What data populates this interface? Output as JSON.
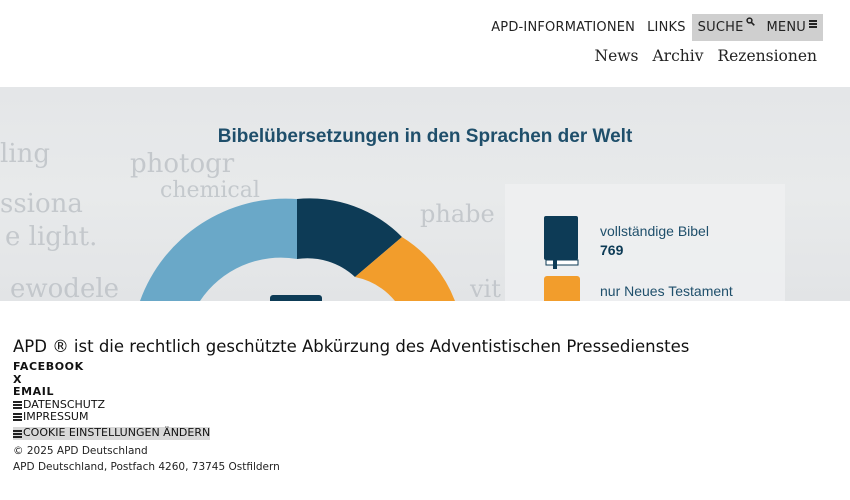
{
  "header": {
    "nav": [
      {
        "label": "APD-INFORMATIONEN"
      },
      {
        "label": "LINKS"
      },
      {
        "label": "SUCHE",
        "icon": "search-icon"
      },
      {
        "label": "MENU",
        "icon": "menu-icon"
      }
    ],
    "subnav": [
      "News",
      "Archiv",
      "Rezensionen"
    ]
  },
  "hero": {
    "title": "Bibelübersetzungen in den Sprachen der Welt",
    "legend": [
      {
        "label": "vollständige Bibel",
        "value": "769"
      },
      {
        "label": "nur Neues Testament"
      }
    ],
    "background_words": [
      "photogr",
      "chemical",
      "ssiona",
      "e light.",
      "ling",
      "ewodele",
      "phabe",
      "vit"
    ],
    "colors": {
      "dark": "#0d3b56",
      "orange": "#f29d2c",
      "light_blue": "#6aa8c8",
      "text": "#1f4f6b"
    }
  },
  "footer": {
    "tagline": "APD ® ist die rechtlich geschützte Abkürzung des Adventistischen Pressedienstes",
    "social": [
      "FACEBOOK",
      "X",
      "EMAIL"
    ],
    "legal": [
      "DATENSCHUTZ",
      "IMPRESSUM",
      "COOKIE EINSTELLUNGEN ÄNDERN"
    ],
    "copyright": "© 2025 APD Deutschland",
    "address": "APD Deutschland, Postfach 4260, 73745 Ostfildern"
  }
}
